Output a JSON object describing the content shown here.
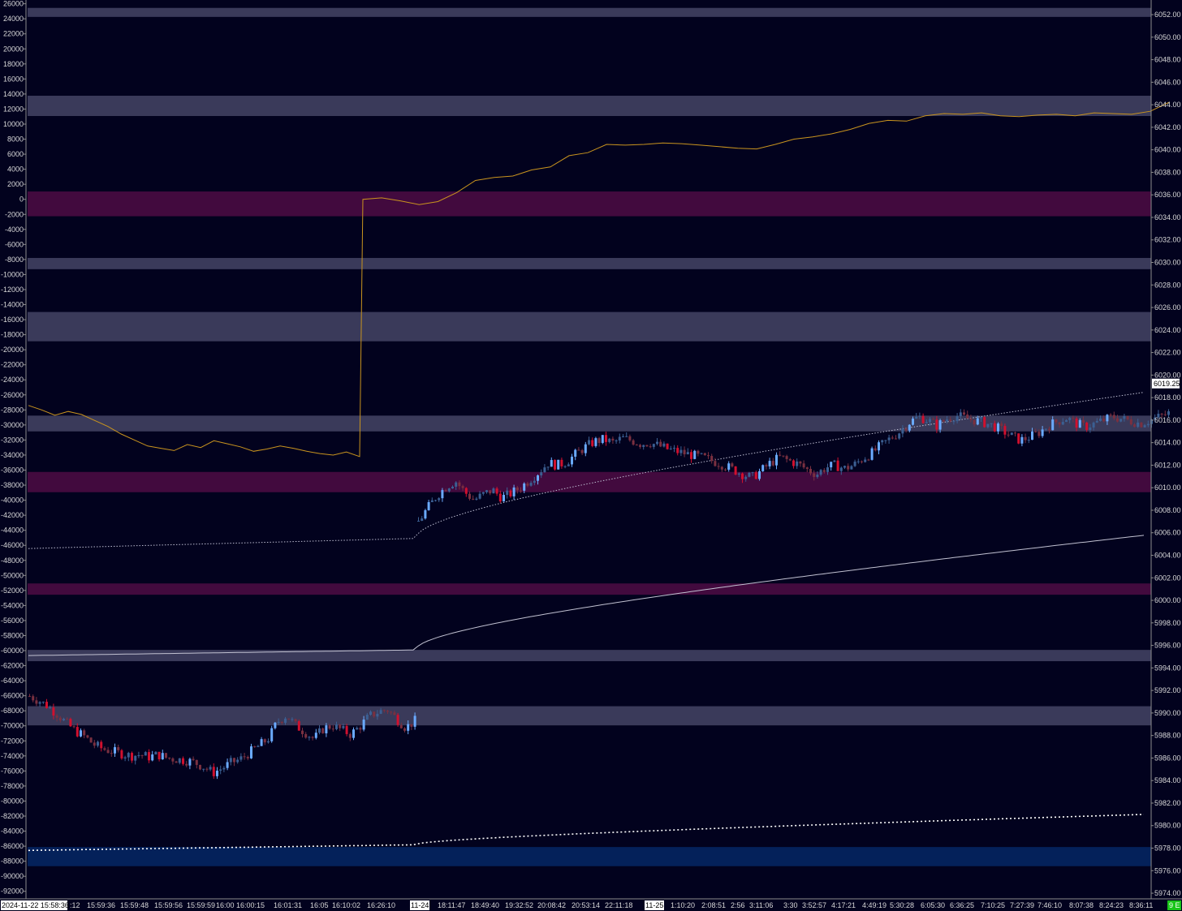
{
  "chart_data": {
    "type": "candlestick",
    "left_axis": {
      "ticks": [
        26000,
        24000,
        22000,
        20000,
        18000,
        16000,
        14000,
        12000,
        10000,
        8000,
        6000,
        4000,
        2000,
        0,
        -2000,
        -4000,
        -6000,
        -8000,
        -10000,
        -12000,
        -14000,
        -16000,
        -18000,
        -20000,
        -22000,
        -24000,
        -26000,
        -28000,
        -30000,
        -32000,
        -34000,
        -36000,
        -38000,
        -40000,
        -42000,
        -44000,
        -46000,
        -48000,
        -50000,
        -52000,
        -54000,
        -56000,
        -58000,
        -60000,
        -62000,
        -64000,
        -66000,
        -68000,
        -70000,
        -72000,
        -74000,
        -76000,
        -78000,
        -80000,
        -82000,
        -84000,
        -86000,
        -88000,
        -90000,
        -92000
      ],
      "range": [
        -93000,
        26500
      ]
    },
    "right_axis": {
      "ticks": [
        "6052.00",
        "6050.00",
        "6048.00",
        "6046.00",
        "6044.00",
        "6042.00",
        "6040.00",
        "6038.00",
        "6036.00",
        "6034.00",
        "6032.00",
        "6030.00",
        "6028.00",
        "6026.00",
        "6024.00",
        "6022.00",
        "6020.00",
        "6018.00",
        "6016.00",
        "6014.00",
        "6012.00",
        "6010.00",
        "6008.00",
        "6006.00",
        "6004.00",
        "6002.00",
        "6000.00",
        "5998.00",
        "5996.00",
        "5994.00",
        "5992.00",
        "5990.00",
        "5988.00",
        "5986.00",
        "5984.00",
        "5982.00",
        "5980.00",
        "5978.00",
        "5976.00",
        "5974.00"
      ],
      "range": [
        5973.5,
        6053.3
      ],
      "last_price": "6019.25"
    },
    "x_labels": [
      "2024-11-22  15:58:36",
      ":12",
      "15:59:36",
      "15:59:48",
      "15:59:56",
      "15:59:59",
      "16:00",
      "16:00:15",
      "16:01:31",
      "16:05",
      "16:10:02",
      "16:26:10",
      "11-24",
      "18:11:47",
      "18:49:40",
      "19:32:52",
      "20:08:42",
      "20:53:14",
      "22:11:18",
      "11-25",
      "1:10:20",
      "2:08:51",
      "2:56",
      "3:11:06",
      "3:30",
      "3:52:57",
      "4:17:21",
      "4:49:19",
      "5:30:28",
      "6:05:30",
      "6:36:25",
      "7:10:25",
      "7:27:39",
      "7:46:10",
      "8:07:38",
      "8:24:23",
      "8:36:11"
    ],
    "corner_badge": "9 E",
    "zones": [
      {
        "from": 6052.6,
        "to": 6051.8,
        "color": "#3a3a5a"
      },
      {
        "from": 6044.8,
        "to": 6043.0,
        "color": "#3a3a5a"
      },
      {
        "from": 6036.3,
        "to": 6034.1,
        "color": "#420a3e"
      },
      {
        "from": 6030.4,
        "to": 6029.4,
        "color": "#3a3a5a"
      },
      {
        "from": 6025.6,
        "to": 6023.0,
        "color": "#3a3a5a"
      },
      {
        "from": 6016.4,
        "to": 6015.0,
        "color": "#3a3a5a"
      },
      {
        "from": 6011.4,
        "to": 6009.6,
        "color": "#420a3e"
      },
      {
        "from": 6001.5,
        "to": 6000.5,
        "color": "#420a3e"
      },
      {
        "from": 5995.6,
        "to": 5994.6,
        "color": "#3a3a5a"
      },
      {
        "from": 5990.6,
        "to": 5988.9,
        "color": "#3a3a5a"
      },
      {
        "from": 5978.1,
        "to": 5976.4,
        "color": "#04215a"
      }
    ],
    "segments": [
      {
        "x0": 35,
        "x1": 512,
        "start": 5991.5,
        "path": [
          0,
          -0.4,
          -0.9,
          -1.6,
          -2.4,
          -3.1,
          -3.6,
          -4.3,
          -4.7,
          -4.9,
          -5.1,
          -5.3,
          -5.2,
          -5.4,
          -5.2,
          -5.5,
          -5.6,
          -5.7,
          -5.9,
          -6.3,
          -6.8,
          -6.4,
          -5.9,
          -5.6,
          -5.0,
          -4.4,
          -3.8,
          -2.3,
          -1.7,
          -2.6,
          -3.2,
          -3.8,
          -2.9,
          -2.6,
          -3.0,
          -3.4,
          -2.7,
          -1.8,
          -1.4,
          -1.2,
          -2.0,
          -2.8,
          -2.2
        ]
      },
      {
        "x0": 514,
        "x1": 1438,
        "start": 6007.0,
        "path": [
          0,
          1.2,
          2.3,
          3.1,
          3.6,
          2.6,
          1.9,
          2.4,
          2.8,
          2.1,
          2.5,
          3.0,
          3.7,
          4.4,
          5.2,
          5.0,
          5.3,
          6.0,
          6.6,
          7.1,
          7.3,
          7.0,
          7.4,
          7.2,
          6.9,
          7.0,
          6.7,
          6.4,
          6.2,
          6.0,
          5.8,
          5.6,
          5.3,
          5.0,
          4.6,
          4.2,
          3.9,
          4.5,
          5.2,
          5.7,
          5.4,
          5.1,
          4.6,
          4.2,
          4.8,
          5.0,
          4.7,
          5.0,
          5.6,
          6.1,
          6.8,
          7.4,
          8.0,
          8.8,
          9.3,
          9.0,
          8.5,
          9.1,
          9.4,
          9.2,
          9.0,
          8.8,
          8.5,
          8.1,
          7.6,
          7.2,
          7.5,
          7.9,
          8.5,
          8.9,
          9.2,
          8.7,
          8.4,
          8.7,
          9.0,
          9.3,
          9.1,
          8.9,
          8.7,
          9.0,
          9.3,
          9.6
        ]
      }
    ],
    "cvd_line": {
      "axis": "left",
      "segments": [
        {
          "x0": 35,
          "x1": 443,
          "values": [
            -27400,
            -28000,
            -28700,
            -28200,
            -28600,
            -29400,
            -30200,
            -31200,
            -32000,
            -32800,
            -33100,
            -33400,
            -32600,
            -33000,
            -32100,
            -32500,
            -32900,
            -33500,
            -33200,
            -32800,
            -33100,
            -33500,
            -33800,
            -34000,
            -33600,
            -34200
          ]
        },
        {
          "x0": 447,
          "x1": 1440,
          "values": [
            0,
            200,
            -200,
            -700,
            -300,
            900,
            2500,
            2900,
            3100,
            3900,
            4300,
            5800,
            6200,
            7300,
            7200,
            7300,
            7500,
            7400,
            7200,
            7000,
            6800,
            6700,
            7300,
            8000,
            8300,
            8700,
            9300,
            10100,
            10500,
            10400,
            11100,
            11400,
            11300,
            11500,
            11100,
            11000,
            11200,
            11300,
            11100,
            11500,
            11400,
            11300,
            11700,
            12900
          ]
        }
      ]
    },
    "averages": [
      {
        "x0": 35,
        "xk": 512,
        "x1": 1412,
        "y0": 6004.6,
        "yk": 6005.5,
        "y1": 6018.5,
        "style": "dotted",
        "color": "#bcbcd0"
      },
      {
        "x0": 35,
        "xk": 512,
        "x1": 1412,
        "y0": 5995.1,
        "yk": 5995.6,
        "y1": 6005.8,
        "style": "solid",
        "color": "#c0c0d0"
      },
      {
        "x0": 35,
        "xk": 512,
        "x1": 1412,
        "y0": 5977.8,
        "yk": 5978.3,
        "y1": 5981.0,
        "style": "dense-dotted",
        "color": "#ffffff"
      }
    ],
    "colors": {
      "background": "#02021e",
      "up_strong": "#6aaaff",
      "up_weak": "#3b5f92",
      "down_strong": "#d0102e",
      "down_weak": "#7a3040",
      "cvd_line": "#c9941e",
      "axis_text": "#d8d8d8",
      "divider": "#8c8c8c",
      "badge": "#19c519"
    }
  }
}
